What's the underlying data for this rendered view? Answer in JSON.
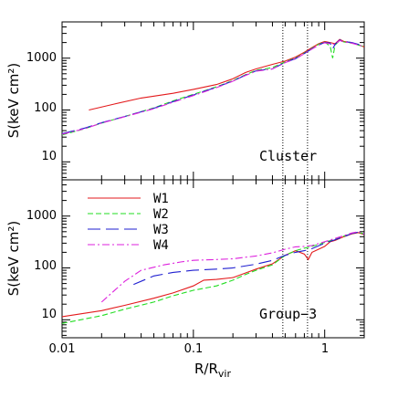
{
  "chart_data": [
    {
      "type": "line",
      "panel": "top",
      "annotation": "Cluster",
      "ylabel": "S(keV cm²)",
      "xlabel": "",
      "x_scale": "log",
      "y_scale": "log",
      "xlim": [
        0.01,
        2.0
      ],
      "ylim": [
        4.5,
        5000
      ],
      "y_ticks": [
        10,
        100,
        1000
      ],
      "y_tick_labels": [
        "10",
        "100",
        "1000"
      ],
      "vlines": [
        0.48,
        0.74
      ],
      "series": [
        {
          "key": "W1",
          "color": "#e31a1c",
          "dash": "none",
          "x": [
            0.016,
            0.025,
            0.04,
            0.07,
            0.1,
            0.15,
            0.2,
            0.25,
            0.3,
            0.4,
            0.5,
            0.6,
            0.7,
            0.8,
            0.9,
            1.0,
            1.1,
            1.2,
            1.3,
            1.4,
            1.6,
            1.8,
            2.0
          ],
          "y": [
            100,
            130,
            170,
            210,
            250,
            310,
            400,
            530,
            620,
            760,
            880,
            1050,
            1300,
            1600,
            1900,
            2100,
            2000,
            1900,
            2300,
            2100,
            2000,
            1800,
            1650
          ]
        },
        {
          "key": "W2",
          "color": "#22dd22",
          "dash": "6,3",
          "x": [
            0.01,
            0.015,
            0.02,
            0.03,
            0.05,
            0.07,
            0.1,
            0.15,
            0.2,
            0.25,
            0.3,
            0.35,
            0.4,
            0.5,
            0.6,
            0.7,
            0.8,
            0.9,
            1.0,
            1.1,
            1.15,
            1.2,
            1.3,
            1.4,
            1.6,
            1.8,
            2.0
          ],
          "y": [
            33,
            44,
            56,
            75,
            110,
            150,
            200,
            280,
            370,
            480,
            580,
            620,
            660,
            850,
            1000,
            1250,
            1550,
            1850,
            2050,
            1700,
            1000,
            1800,
            2200,
            2050,
            1950,
            1800,
            1650
          ]
        },
        {
          "key": "W3",
          "color": "#1f1fd0",
          "dash": "14,6",
          "x": [
            0.01,
            0.015,
            0.02,
            0.03,
            0.05,
            0.07,
            0.1,
            0.15,
            0.2,
            0.25,
            0.3,
            0.35,
            0.4,
            0.5,
            0.6,
            0.7,
            0.8,
            0.9,
            1.0,
            1.1,
            1.15,
            1.2,
            1.3,
            1.4,
            1.6,
            1.8,
            2.0
          ],
          "y": [
            35,
            45,
            57,
            75,
            108,
            145,
            195,
            275,
            365,
            470,
            570,
            600,
            620,
            830,
            980,
            1230,
            1520,
            1800,
            2000,
            1950,
            1500,
            1850,
            2250,
            2100,
            2000,
            1850,
            1700
          ]
        },
        {
          "key": "W4",
          "color": "#dd22dd",
          "dash": "8,3,2,3",
          "x": [
            0.01,
            0.015,
            0.02,
            0.03,
            0.05,
            0.07,
            0.1,
            0.15,
            0.2,
            0.25,
            0.3,
            0.35,
            0.4,
            0.5,
            0.6,
            0.7,
            0.8,
            0.9,
            1.0,
            1.1,
            1.2,
            1.3,
            1.4,
            1.6,
            1.8,
            2.0
          ],
          "y": [
            34,
            44,
            56,
            74,
            106,
            142,
            190,
            270,
            360,
            465,
            560,
            590,
            620,
            820,
            970,
            1220,
            1500,
            1780,
            1980,
            1900,
            1850,
            2200,
            2050,
            1950,
            1800,
            1650
          ]
        }
      ]
    },
    {
      "type": "line",
      "panel": "bottom",
      "annotation": "Group−3",
      "ylabel": "S(keV cm²)",
      "xlabel": "R/R_vir",
      "x_scale": "log",
      "y_scale": "log",
      "xlim": [
        0.01,
        2.0
      ],
      "ylim": [
        4.5,
        5000
      ],
      "y_ticks": [
        10,
        100,
        1000
      ],
      "y_tick_labels": [
        "10",
        "100",
        "1000"
      ],
      "x_ticks": [
        0.01,
        0.1,
        1
      ],
      "x_tick_labels": [
        "0.01",
        "0.1",
        "1"
      ],
      "vlines": [
        0.48,
        0.74
      ],
      "legend": {
        "position": "top-left",
        "entries": [
          "W1",
          "W2",
          "W3",
          "W4"
        ]
      },
      "series": [
        {
          "key": "W1",
          "color": "#e31a1c",
          "dash": "none",
          "x": [
            0.01,
            0.02,
            0.03,
            0.05,
            0.07,
            0.1,
            0.12,
            0.15,
            0.2,
            0.25,
            0.3,
            0.4,
            0.5,
            0.6,
            0.7,
            0.75,
            0.8,
            0.9,
            1.0,
            1.1,
            1.2,
            1.4,
            1.6,
            1.8,
            2.0
          ],
          "y": [
            11.5,
            15,
            19,
            26,
            33,
            45,
            58,
            60,
            65,
            80,
            95,
            120,
            175,
            215,
            185,
            145,
            200,
            230,
            260,
            320,
            340,
            400,
            450,
            480,
            440
          ]
        },
        {
          "key": "W2",
          "color": "#22dd22",
          "dash": "6,3",
          "x": [
            0.01,
            0.02,
            0.03,
            0.05,
            0.07,
            0.1,
            0.15,
            0.2,
            0.25,
            0.3,
            0.4,
            0.5,
            0.6,
            0.7,
            0.8,
            0.9,
            1.0,
            1.2,
            1.4,
            1.6,
            1.8,
            2.0
          ],
          "y": [
            8.5,
            12,
            16,
            22,
            29,
            37,
            45,
            58,
            75,
            90,
            115,
            175,
            215,
            240,
            260,
            285,
            310,
            360,
            410,
            460,
            490,
            450
          ]
        },
        {
          "key": "W3",
          "color": "#1f1fd0",
          "dash": "14,6",
          "x": [
            0.035,
            0.05,
            0.07,
            0.1,
            0.15,
            0.2,
            0.3,
            0.4,
            0.5,
            0.6,
            0.7,
            0.8,
            1.0,
            1.2,
            1.4,
            1.6,
            1.8,
            2.0
          ],
          "y": [
            48,
            70,
            82,
            90,
            95,
            100,
            118,
            140,
            175,
            200,
            215,
            235,
            300,
            350,
            400,
            460,
            490,
            450
          ]
        },
        {
          "key": "W4",
          "color": "#dd22dd",
          "dash": "8,3,2,3",
          "x": [
            0.02,
            0.03,
            0.04,
            0.06,
            0.08,
            0.1,
            0.15,
            0.2,
            0.3,
            0.4,
            0.5,
            0.6,
            0.7,
            0.8,
            1.0,
            1.2,
            1.4,
            1.6,
            1.8,
            2.0
          ],
          "y": [
            22,
            55,
            90,
            115,
            130,
            140,
            145,
            150,
            170,
            195,
            230,
            255,
            260,
            270,
            320,
            370,
            420,
            470,
            500,
            460
          ]
        }
      ]
    }
  ]
}
